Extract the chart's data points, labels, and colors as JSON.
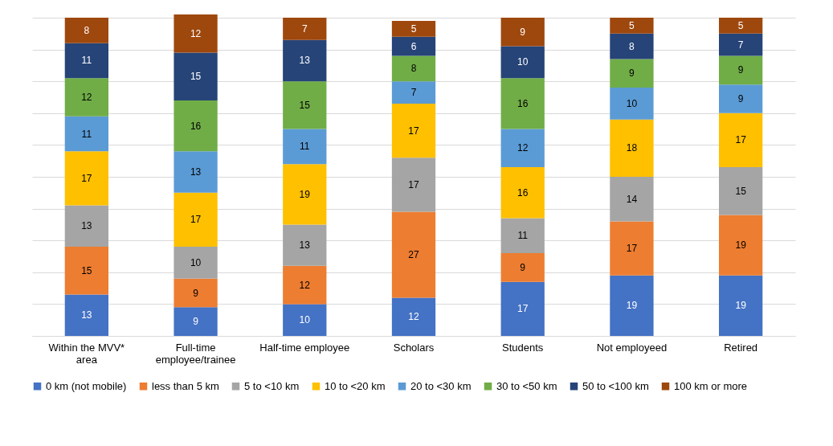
{
  "chart_data": {
    "type": "bar",
    "stacked": true,
    "data_labels": true,
    "grid": "y",
    "legend": "bottom",
    "tick_labels": "x",
    "categories": [
      "Within the MVV* area",
      "Full-time employee/trainee",
      "Half-time employee",
      "Scholars",
      "Students",
      "Not employeed",
      "Retired"
    ],
    "ylim": [
      0,
      101
    ],
    "yticks": [
      {
        "value": 0,
        "label": null
      },
      {
        "value": 10,
        "label": null
      },
      {
        "value": 20,
        "label": null
      },
      {
        "value": 30,
        "label": null
      },
      {
        "value": 40,
        "label": null
      },
      {
        "value": 50,
        "label": null
      },
      {
        "value": 60,
        "label": null
      },
      {
        "value": 70,
        "label": null
      },
      {
        "value": 80,
        "label": null
      },
      {
        "value": 90,
        "label": null
      },
      {
        "value": 100,
        "label": null
      }
    ],
    "series": [
      {
        "name": "0 km (not mobile)",
        "color": "#4472c4",
        "values": [
          13,
          9,
          10,
          12,
          17,
          19,
          19
        ]
      },
      {
        "name": "less than 5 km",
        "color": "#ed7d31",
        "values": [
          15,
          9,
          12,
          27,
          9,
          17,
          19
        ]
      },
      {
        "name": "5 to <10 km",
        "color": "#a5a5a5",
        "values": [
          13,
          10,
          13,
          17,
          11,
          14,
          15
        ]
      },
      {
        "name": "10 to <20 km",
        "color": "#ffc000",
        "values": [
          17,
          17,
          19,
          17,
          16,
          18,
          17
        ]
      },
      {
        "name": "20 to <30 km",
        "color": "#5b9bd5",
        "values": [
          11,
          13,
          11,
          7,
          12,
          10,
          9
        ]
      },
      {
        "name": "30 to <50 km",
        "color": "#70ad47",
        "values": [
          12,
          16,
          15,
          8,
          16,
          9,
          9
        ]
      },
      {
        "name": "50 to <100 km",
        "color": "#264478",
        "values": [
          11,
          15,
          13,
          6,
          10,
          8,
          7
        ]
      },
      {
        "name": "100 km or more",
        "color": "#9e480e",
        "values": [
          8,
          12,
          7,
          5,
          9,
          5,
          5
        ]
      }
    ]
  }
}
